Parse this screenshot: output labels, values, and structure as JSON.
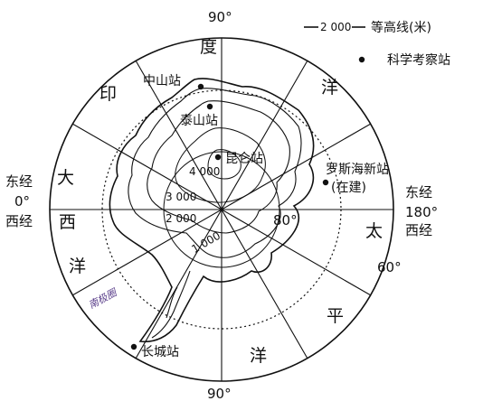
{
  "legend": {
    "contour_sample": "2 000",
    "contour_label": "等高线(米)",
    "station_label": "科学考察站"
  },
  "degrees": {
    "top": "90°",
    "bottom": "90°",
    "left_east": "东经",
    "left_zero": "0°",
    "left_west": "西经",
    "right_east": "东经",
    "right_180": "180°",
    "right_west": "西经",
    "lat80": "80°",
    "lat60": "60°"
  },
  "oceans": {
    "indian": [
      "印",
      "度",
      "洋"
    ],
    "atlantic": [
      "大",
      "西",
      "洋"
    ],
    "pacific": [
      "太",
      "平",
      "洋"
    ]
  },
  "stations": {
    "zhongshan": "中山站",
    "taishan": "泰山站",
    "kunlun": "昆仑站",
    "rossnew_line1": "罗斯海新站",
    "rossnew_line2": "(在建)",
    "changcheng": "长城站"
  },
  "contours": [
    "4 000",
    "3 000",
    "2 000",
    "1 000"
  ],
  "region_label": "南极圈",
  "colors": {
    "ink": "#111111",
    "accent": "#5a3e8a"
  }
}
